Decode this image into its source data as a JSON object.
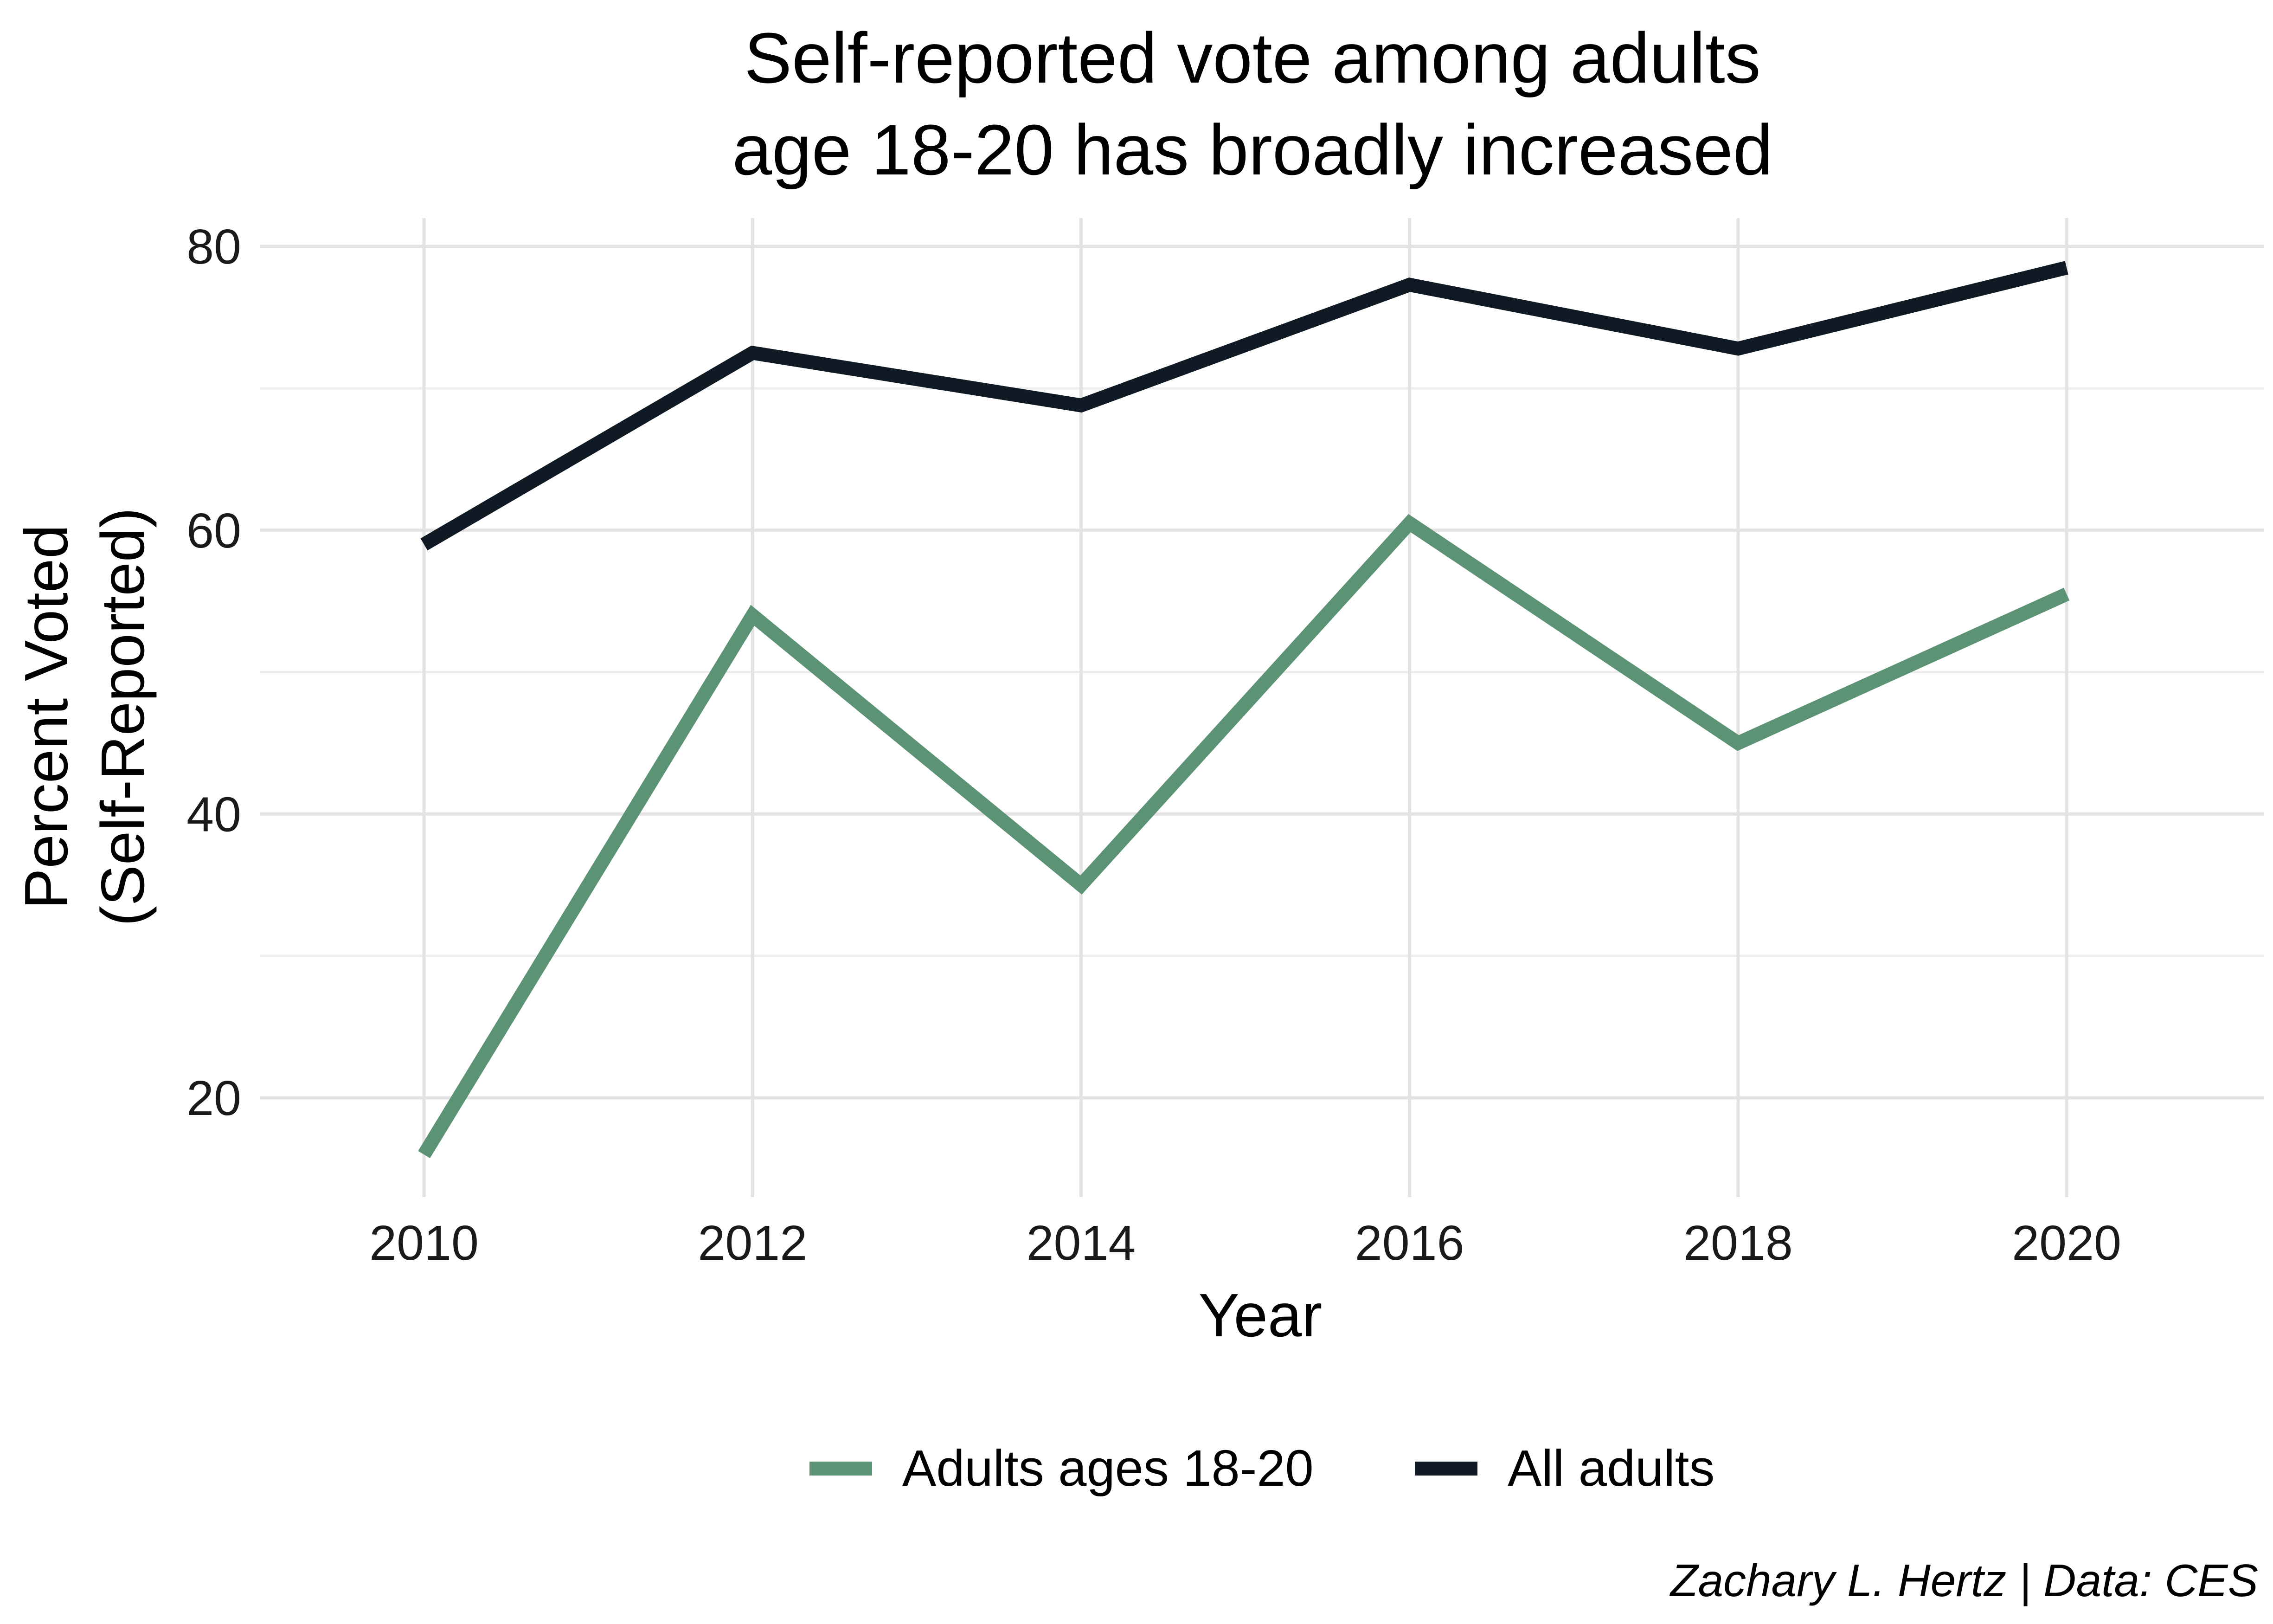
{
  "chart_data": {
    "type": "line",
    "title_lines": [
      "Self-reported vote among adults",
      "age 18-20 has broadly increased"
    ],
    "xlabel": "Year",
    "ylabel_lines": [
      "Percent Voted",
      "(Self-Reported)"
    ],
    "x": [
      2010,
      2012,
      2014,
      2016,
      2018,
      2020
    ],
    "x_ticks": [
      "2010",
      "2012",
      "2014",
      "2016",
      "2018",
      "2020"
    ],
    "xlim": [
      2009,
      2021.2
    ],
    "y_ticks": [
      "20",
      "40",
      "60",
      "80"
    ],
    "y_tick_values": [
      20,
      40,
      60,
      80
    ],
    "ylim": [
      13,
      82
    ],
    "grid": true,
    "legend_position": "bottom",
    "series": [
      {
        "name": "Adults ages 18-20",
        "color": "#5b9374",
        "values": [
          16,
          54,
          35,
          60.5,
          45,
          55.5
        ]
      },
      {
        "name": "All adults",
        "color": "#0f1a24",
        "values": [
          59,
          72.5,
          68.8,
          77.3,
          72.8,
          78.5
        ]
      }
    ],
    "caption": "Zachary L. Hertz | Data: CES"
  }
}
